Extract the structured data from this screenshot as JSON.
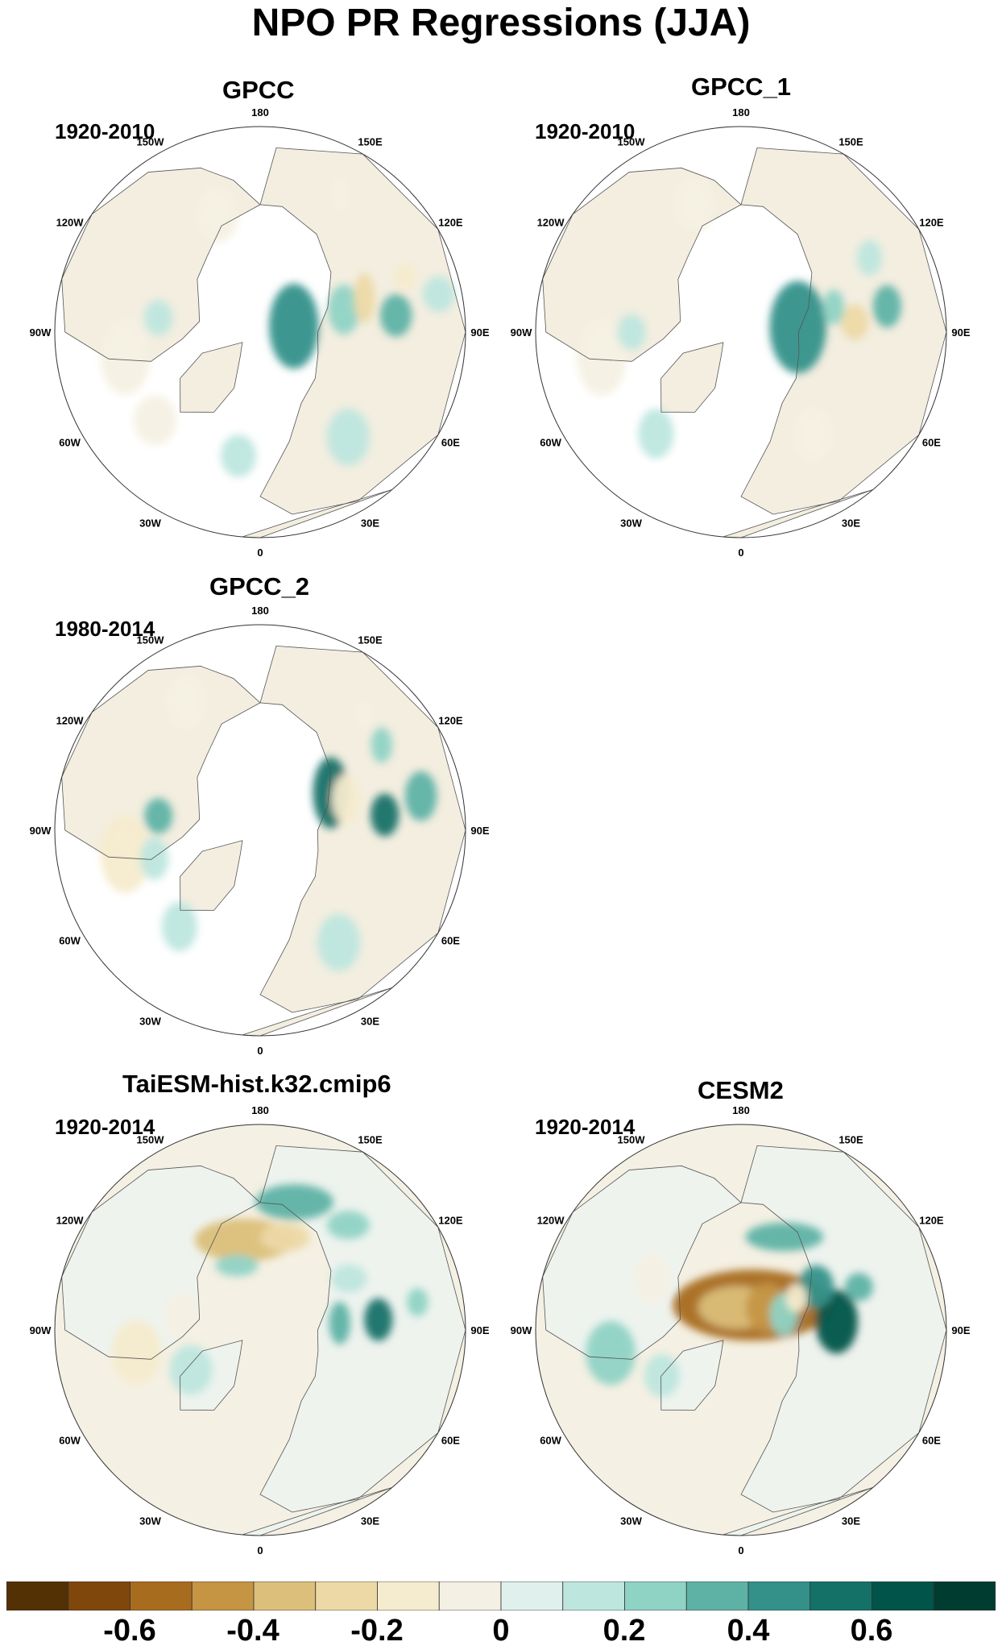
{
  "title": "NPO PR Regressions (JJA)",
  "panels": [
    {
      "id": "gpcc",
      "title": "GPCC",
      "period": "1920-2010",
      "blobs": [
        [
          100,
          15,
          14,
          24,
          4
        ],
        [
          105,
          38,
          9,
          14,
          2
        ],
        [
          97,
          60,
          9,
          12,
          3
        ],
        [
          102,
          80,
          9,
          10,
          1
        ],
        [
          108,
          48,
          6,
          14,
          -3
        ],
        [
          111,
          68,
          6,
          8,
          -2
        ],
        [
          150,
          70,
          5,
          10,
          -1
        ],
        [
          280,
          60,
          14,
          22,
          -1
        ],
        [
          262,
          45,
          8,
          10,
          1
        ],
        [
          40,
          60,
          12,
          16,
          1
        ],
        [
          310,
          60,
          12,
          14,
          -1
        ],
        [
          350,
          55,
          10,
          12,
          1
        ],
        [
          200,
          55,
          12,
          16,
          -1
        ]
      ]
    },
    {
      "id": "gpcc1",
      "title": "GPCC_1",
      "period": "1920-2010",
      "blobs": [
        [
          95,
          25,
          16,
          26,
          4
        ],
        [
          95,
          50,
          8,
          10,
          -3
        ],
        [
          100,
          65,
          8,
          12,
          3
        ],
        [
          105,
          42,
          6,
          10,
          2
        ],
        [
          120,
          65,
          7,
          10,
          1
        ],
        [
          280,
          62,
          14,
          22,
          -1
        ],
        [
          270,
          48,
          8,
          10,
          1
        ],
        [
          35,
          55,
          12,
          16,
          -1
        ],
        [
          320,
          58,
          10,
          14,
          1
        ],
        [
          200,
          60,
          12,
          16,
          -1
        ]
      ]
    },
    {
      "id": "gpcc2",
      "title": "GPCC_2",
      "period": "1980-2014",
      "blobs": [
        [
          118,
          35,
          10,
          20,
          5
        ],
        [
          97,
          55,
          8,
          12,
          5
        ],
        [
          102,
          72,
          9,
          14,
          3
        ],
        [
          110,
          40,
          8,
          14,
          -2
        ],
        [
          125,
          65,
          6,
          10,
          2
        ],
        [
          138,
          68,
          5,
          8,
          -1
        ],
        [
          280,
          60,
          14,
          22,
          -2
        ],
        [
          285,
          48,
          8,
          12,
          1
        ],
        [
          262,
          45,
          8,
          10,
          3
        ],
        [
          35,
          60,
          12,
          16,
          1
        ],
        [
          320,
          55,
          10,
          14,
          1
        ],
        [
          210,
          65,
          12,
          16,
          -1
        ]
      ]
    },
    {
      "id": "taiesm",
      "title": "TaiESM-hist.k32.cmip6",
      "period": "1920-2014",
      "blobs": [
        [
          190,
          40,
          28,
          12,
          -4
        ],
        [
          165,
          42,
          14,
          8,
          -3
        ],
        [
          200,
          30,
          12,
          6,
          2
        ],
        [
          165,
          58,
          22,
          10,
          3
        ],
        [
          140,
          60,
          12,
          8,
          2
        ],
        [
          120,
          45,
          10,
          8,
          1
        ],
        [
          95,
          52,
          8,
          12,
          5
        ],
        [
          95,
          35,
          6,
          12,
          3
        ],
        [
          100,
          70,
          6,
          8,
          2
        ],
        [
          280,
          55,
          14,
          18,
          -2
        ],
        [
          300,
          35,
          12,
          14,
          1
        ],
        [
          260,
          35,
          10,
          14,
          -1
        ]
      ]
    },
    {
      "id": "cesm2",
      "title": "CESM2",
      "period": "1920-2014",
      "blobs": [
        [
          155,
          12,
          45,
          20,
          -6
        ],
        [
          190,
          10,
          22,
          12,
          -4
        ],
        [
          130,
          15,
          12,
          14,
          -5
        ],
        [
          110,
          20,
          8,
          12,
          2
        ],
        [
          95,
          42,
          12,
          18,
          6
        ],
        [
          120,
          38,
          10,
          12,
          4
        ],
        [
          110,
          55,
          8,
          8,
          3
        ],
        [
          155,
          45,
          22,
          8,
          3
        ],
        [
          120,
          28,
          6,
          8,
          -2
        ],
        [
          280,
          58,
          14,
          18,
          2
        ],
        [
          300,
          40,
          10,
          12,
          1
        ],
        [
          240,
          45,
          10,
          14,
          -1
        ]
      ]
    }
  ],
  "lon_labels": [
    "180",
    "150E",
    "120E",
    "90E",
    "60E",
    "30E",
    "0",
    "30W",
    "60W",
    "90W",
    "120W",
    "150W"
  ],
  "colorbar": {
    "colors": [
      "#543005",
      "#7f470c",
      "#a86c1f",
      "#c59544",
      "#dbbf7a",
      "#edd9a6",
      "#f5ebce",
      "#f4f0e3",
      "#e0f0ed",
      "#bde6de",
      "#8fd3c5",
      "#5eb2a5",
      "#33918a",
      "#137168",
      "#01544a",
      "#003c30"
    ],
    "tick_labels": [
      "-0.6",
      "-0.4",
      "-0.2",
      "0",
      "0.2",
      "0.4",
      "0.6"
    ]
  }
}
